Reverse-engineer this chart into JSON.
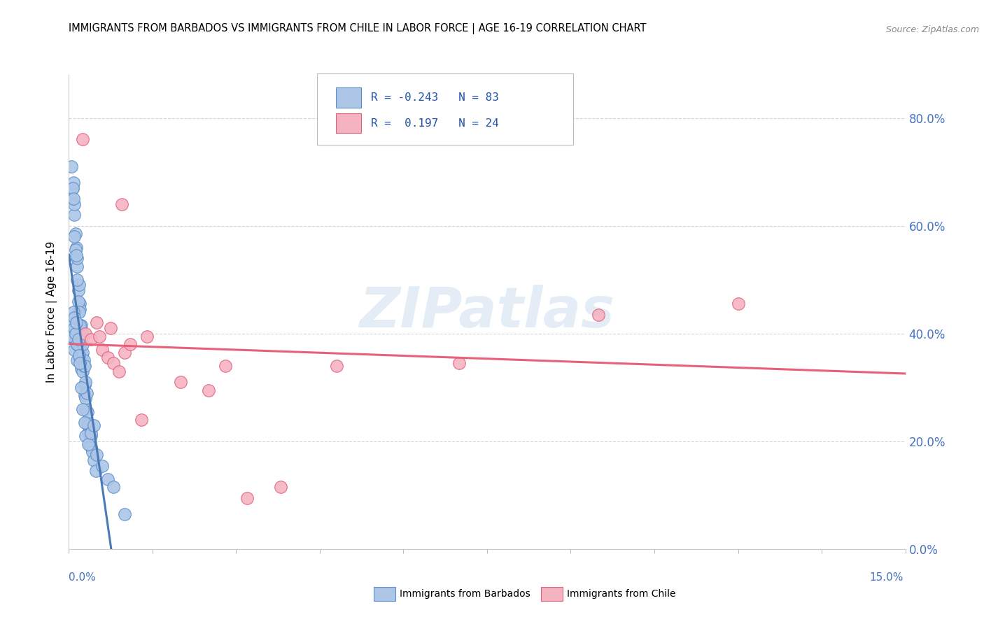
{
  "title": "IMMIGRANTS FROM BARBADOS VS IMMIGRANTS FROM CHILE IN LABOR FORCE | AGE 16-19 CORRELATION CHART",
  "source": "Source: ZipAtlas.com",
  "ylabel": "In Labor Force | Age 16-19",
  "xmin": 0.0,
  "xmax": 0.15,
  "ymin": 0.0,
  "ymax": 0.88,
  "yticks": [
    0.0,
    0.2,
    0.4,
    0.6,
    0.8
  ],
  "yticklabels": [
    "0.0%",
    "20.0%",
    "40.0%",
    "60.0%",
    "80.0%"
  ],
  "R_barbados": "-0.243",
  "N_barbados": "83",
  "R_chile": "0.197",
  "N_chile": "24",
  "barbados_fill": "#adc6e8",
  "barbados_edge": "#5b8ec9",
  "chile_fill": "#f5b3c2",
  "chile_edge": "#e0607a",
  "barbados_line": "#4a7ab5",
  "chile_line": "#e8607a",
  "legend_barbados": "Immigrants from Barbados",
  "legend_chile": "Immigrants from Chile",
  "barbados_x": [
    0.0008,
    0.001,
    0.001,
    0.0012,
    0.0013,
    0.0015,
    0.0015,
    0.0018,
    0.002,
    0.002,
    0.0022,
    0.0023,
    0.0025,
    0.0025,
    0.0027,
    0.0028,
    0.0028,
    0.003,
    0.003,
    0.0032,
    0.0033,
    0.0035,
    0.0035,
    0.0037,
    0.0038,
    0.004,
    0.004,
    0.0042,
    0.0045,
    0.0048,
    0.0005,
    0.0007,
    0.0008,
    0.001,
    0.001,
    0.0012,
    0.0013,
    0.0015,
    0.0015,
    0.0017,
    0.0018,
    0.002,
    0.002,
    0.0022,
    0.0023,
    0.0025,
    0.0027,
    0.0028,
    0.003,
    0.0032,
    0.0005,
    0.0007,
    0.0008,
    0.001,
    0.0012,
    0.0013,
    0.0015,
    0.0017,
    0.0018,
    0.002,
    0.0005,
    0.0006,
    0.0008,
    0.001,
    0.001,
    0.0012,
    0.0013,
    0.0015,
    0.0017,
    0.0018,
    0.002,
    0.0022,
    0.0025,
    0.0028,
    0.003,
    0.0035,
    0.004,
    0.0045,
    0.005,
    0.006,
    0.007,
    0.008,
    0.01
  ],
  "barbados_y": [
    0.4,
    0.37,
    0.39,
    0.39,
    0.41,
    0.35,
    0.38,
    0.38,
    0.355,
    0.375,
    0.335,
    0.36,
    0.33,
    0.365,
    0.34,
    0.285,
    0.305,
    0.26,
    0.28,
    0.235,
    0.255,
    0.215,
    0.23,
    0.195,
    0.215,
    0.19,
    0.21,
    0.18,
    0.165,
    0.145,
    0.65,
    0.67,
    0.68,
    0.62,
    0.64,
    0.585,
    0.56,
    0.525,
    0.54,
    0.48,
    0.49,
    0.455,
    0.445,
    0.415,
    0.4,
    0.38,
    0.35,
    0.34,
    0.31,
    0.29,
    0.71,
    0.67,
    0.65,
    0.58,
    0.555,
    0.545,
    0.5,
    0.46,
    0.44,
    0.415,
    0.42,
    0.395,
    0.44,
    0.41,
    0.43,
    0.4,
    0.42,
    0.38,
    0.39,
    0.36,
    0.345,
    0.3,
    0.26,
    0.235,
    0.21,
    0.195,
    0.215,
    0.23,
    0.175,
    0.155,
    0.13,
    0.115,
    0.065
  ],
  "chile_x": [
    0.0025,
    0.003,
    0.004,
    0.005,
    0.0055,
    0.006,
    0.007,
    0.0075,
    0.008,
    0.009,
    0.0095,
    0.01,
    0.011,
    0.013,
    0.014,
    0.02,
    0.025,
    0.028,
    0.032,
    0.038,
    0.048,
    0.07,
    0.095,
    0.12
  ],
  "chile_y": [
    0.76,
    0.4,
    0.39,
    0.42,
    0.395,
    0.37,
    0.355,
    0.41,
    0.345,
    0.33,
    0.64,
    0.365,
    0.38,
    0.24,
    0.395,
    0.31,
    0.295,
    0.34,
    0.095,
    0.115,
    0.34,
    0.345,
    0.435,
    0.455
  ],
  "barb_trend_x0": 0.0,
  "barb_trend_x1": 0.012,
  "barb_trend_xdash0": 0.012,
  "barb_trend_xdash1": 0.075,
  "chile_trend_x0": 0.0,
  "chile_trend_x1": 0.15
}
